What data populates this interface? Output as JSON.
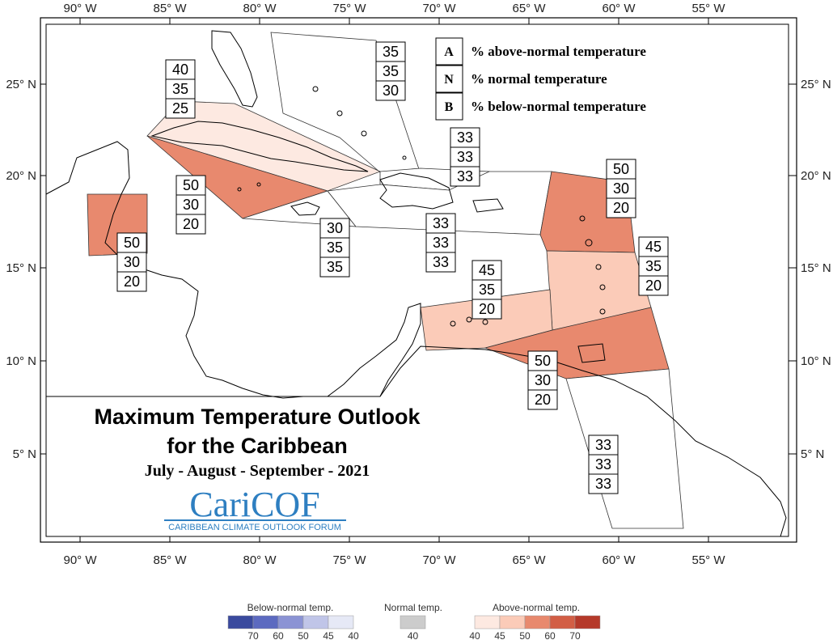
{
  "axes": {
    "lon_labels": [
      "90° W",
      "85° W",
      "80° W",
      "75° W",
      "70° W",
      "65° W",
      "60° W",
      "55° W"
    ],
    "lat_labels": [
      "25° N",
      "20° N",
      "15° N",
      "10° N",
      "5° N"
    ]
  },
  "key": {
    "rows": [
      {
        "letter": "A",
        "text": "% above-normal temperature"
      },
      {
        "letter": "N",
        "text": "% normal temperature"
      },
      {
        "letter": "B",
        "text": "% below-normal temperature"
      }
    ]
  },
  "title": {
    "line1": "Maximum Temperature Outlook",
    "line2": "for the Caribbean",
    "period": "July - August - September - 2021"
  },
  "logo": {
    "name": "CariCOF",
    "subtitle": "CARIBBEAN CLIMATE OUTLOOK FORUM"
  },
  "regions": [
    {
      "name": "bahamas",
      "color": "#ffffff",
      "probs": [
        "35",
        "35",
        "30"
      ]
    },
    {
      "name": "cuba",
      "color": "#fde9e1",
      "probs": [
        "40",
        "35",
        "25"
      ]
    },
    {
      "name": "cayman",
      "color": "#e8896e",
      "probs": [
        "50",
        "30",
        "20"
      ]
    },
    {
      "name": "belize",
      "color": "#e8896e",
      "probs": [
        "50",
        "30",
        "20"
      ]
    },
    {
      "name": "jamaica",
      "color": "#ffffff",
      "probs": [
        "30",
        "35",
        "35"
      ]
    },
    {
      "name": "turks-caicos",
      "color": "#ffffff",
      "probs": [
        "33",
        "33",
        "33"
      ]
    },
    {
      "name": "hispaniola-puertorico",
      "color": "#ffffff",
      "probs": [
        "33",
        "33",
        "33"
      ]
    },
    {
      "name": "northern-leewards",
      "color": "#e8896e",
      "probs": [
        "50",
        "30",
        "20"
      ]
    },
    {
      "name": "windwards",
      "color": "#fbcbb8",
      "probs": [
        "45",
        "35",
        "20"
      ]
    },
    {
      "name": "abc-islands",
      "color": "#fbcbb8",
      "probs": [
        "45",
        "35",
        "20"
      ]
    },
    {
      "name": "trinidad",
      "color": "#e8896e",
      "probs": [
        "50",
        "30",
        "20"
      ]
    },
    {
      "name": "guianas",
      "color": "#ffffff",
      "probs": [
        "33",
        "33",
        "33"
      ]
    }
  ],
  "legend": {
    "below": {
      "title": "Below-normal temp.",
      "ticks": [
        "70",
        "60",
        "50",
        "45",
        "40"
      ],
      "colors": [
        "#3a4a9e",
        "#5c6ac0",
        "#8b93d4",
        "#c0c5e8",
        "#e6e9f6"
      ]
    },
    "normal": {
      "title": "Normal temp.",
      "ticks": [
        "40"
      ],
      "colors": [
        "#cccccc"
      ]
    },
    "above": {
      "title": "Above-normal temp.",
      "ticks": [
        "40",
        "45",
        "50",
        "60",
        "70"
      ],
      "colors": [
        "#fde9e1",
        "#fbcbb8",
        "#e8896e",
        "#d25e45",
        "#b5392a"
      ]
    }
  }
}
